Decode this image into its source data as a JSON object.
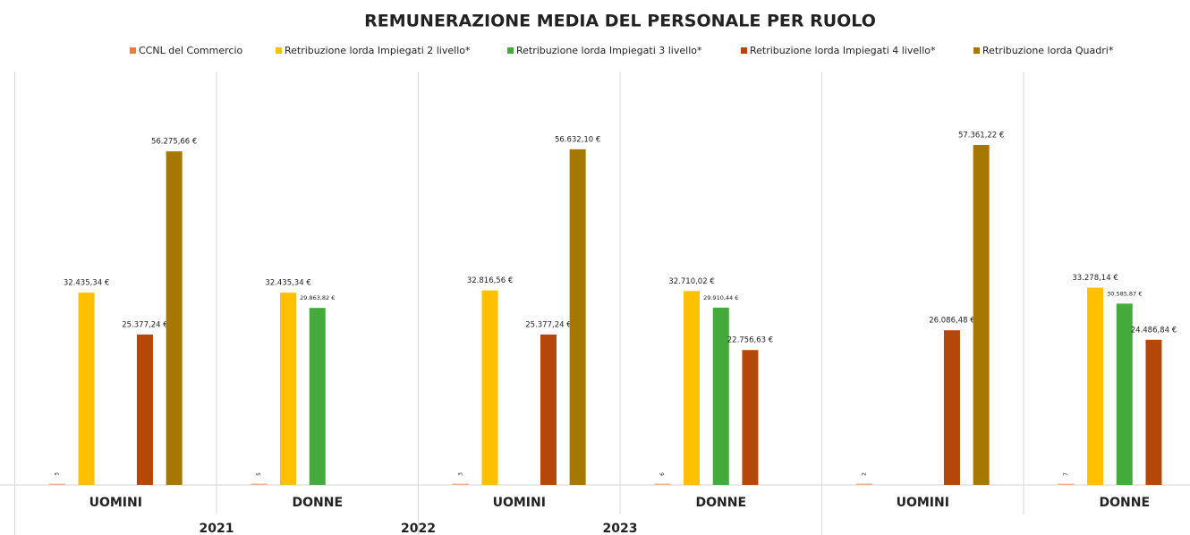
{
  "chart_data": {
    "type": "bar",
    "title": "REMUNERAZIONE MEDIA DEL PERSONALE PER RUOLO",
    "categories": [
      "UOMINI",
      "DONNE",
      "UOMINI",
      "DONNE",
      "UOMINI",
      "DONNE"
    ],
    "category_groups": [
      "2021",
      "2022",
      "2023"
    ],
    "series": [
      {
        "name": "CCNL del Commercio",
        "color": "#f4b183",
        "values": [
          3,
          5,
          3,
          6,
          2,
          7
        ]
      },
      {
        "name": "Retribuzione lorda Impiegati 2 livello*",
        "color": "#ffc000",
        "values": [
          32435.34,
          32435.34,
          32816.56,
          32710.02,
          null,
          33278.14
        ],
        "value_labels": [
          "32.435,34 €",
          "32.435,34 €",
          "32.816,56 €",
          "32.710,02 €",
          null,
          "33.278,14 €"
        ]
      },
      {
        "name": "Retribuzione lorda Impiegati 3 livello*",
        "color": "#43aa3b",
        "values": [
          null,
          29863.82,
          null,
          29910.44,
          null,
          30585.87
        ],
        "value_labels": [
          null,
          "29.863,82 €",
          null,
          "29.910,44 €",
          null,
          "30.585,87 €"
        ]
      },
      {
        "name": "Retribuzione lorda Impiegati 4 livello*",
        "color": "#b5470b",
        "values": [
          25377.24,
          null,
          25377.24,
          22756.63,
          26086.48,
          24486.84
        ],
        "value_labels": [
          "25.377,24 €",
          null,
          "25.377,24 €",
          "22.756,63 €",
          "26.086,48 €",
          "24.486,84 €"
        ]
      },
      {
        "name": "Retribuzione lorda Quadri*",
        "color": "#a67800",
        "values": [
          56275.66,
          null,
          56632.1,
          null,
          57361.22,
          null
        ],
        "value_labels": [
          "56.275,66 €",
          null,
          "56.632,10 €",
          null,
          "57.361,22 €",
          null
        ]
      }
    ],
    "legend": "top"
  }
}
